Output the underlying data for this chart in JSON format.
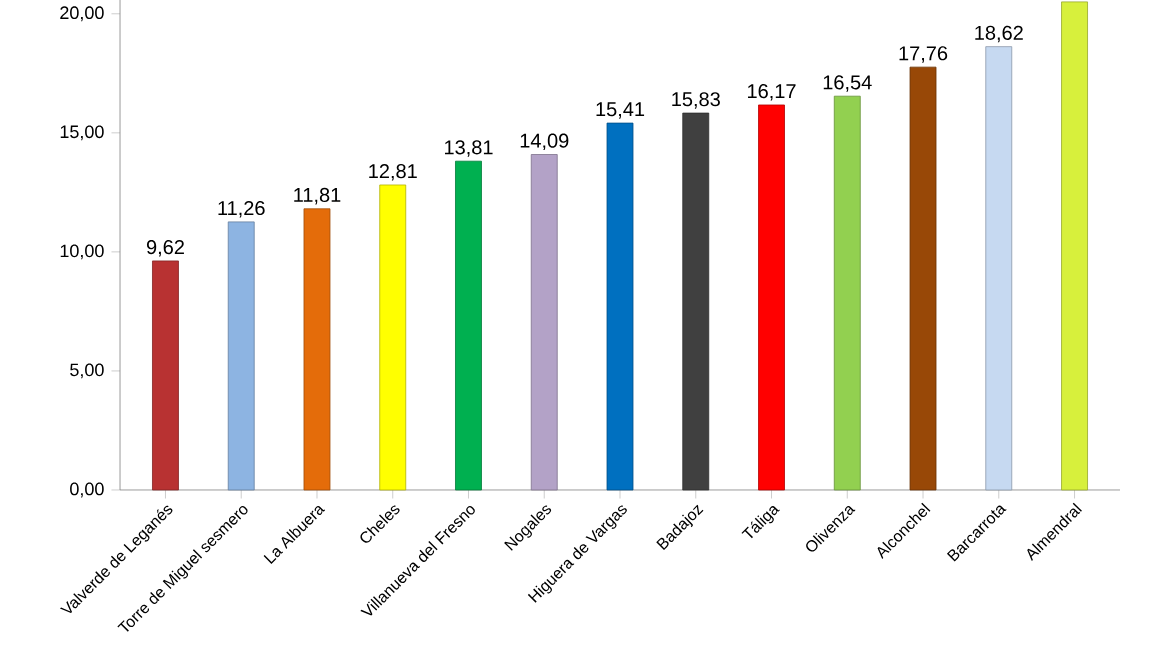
{
  "chart_data": {
    "type": "bar",
    "categories": [
      "Valverde de Leganés",
      "Torre de Miguel sesmero",
      "La Albuera",
      "Cheles",
      "Villanueva del Fresno",
      "Nogales",
      "Higuera de Vargas",
      "Badajoz",
      "Táliga",
      "Olivenza",
      "Alconchel",
      "Barcarrota",
      "Almendral"
    ],
    "values": [
      9.62,
      11.26,
      11.81,
      12.81,
      13.81,
      14.09,
      15.41,
      15.83,
      16.17,
      16.54,
      17.76,
      18.62,
      20.5
    ],
    "value_labels": [
      "9,62",
      "11,26",
      "11,81",
      "12,81",
      "13,81",
      "14,09",
      "15,41",
      "15,83",
      "16,17",
      "16,54",
      "17,76",
      "18,62",
      null
    ],
    "colors": [
      "#b83232",
      "#8db4e2",
      "#e46c0a",
      "#ffff00",
      "#00b050",
      "#b3a2c7",
      "#0070c0",
      "#404040",
      "#ff0000",
      "#92d050",
      "#984807",
      "#c6d9f1",
      "#d7f03c"
    ],
    "ylim": [
      0,
      21
    ],
    "yticks": [
      {
        "value": 0,
        "label": "0,00"
      },
      {
        "value": 5,
        "label": "5,00"
      },
      {
        "value": 10,
        "label": "10,00"
      },
      {
        "value": 15,
        "label": "15,00"
      },
      {
        "value": 20,
        "label": "20,00"
      }
    ],
    "grid": false
  }
}
